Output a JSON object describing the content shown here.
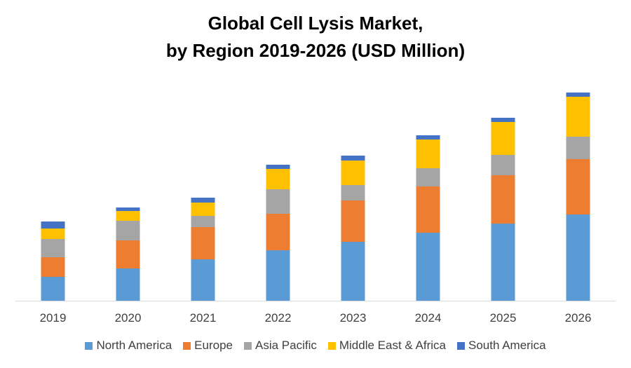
{
  "chart_data": {
    "type": "bar",
    "stacked": true,
    "title_line1": "Global Cell Lysis Market,",
    "title_line2": "by Region 2019-2026 (USD Million)",
    "categories": [
      "2019",
      "2020",
      "2021",
      "2022",
      "2023",
      "2024",
      "2025",
      "2026"
    ],
    "series": [
      {
        "name": "North America",
        "color": "#5B9BD5",
        "values": [
          34,
          46,
          59,
          72,
          84,
          97,
          110,
          123
        ]
      },
      {
        "name": "Europe",
        "color": "#ED7D31",
        "values": [
          28,
          40,
          46,
          52,
          59,
          66,
          69,
          79
        ]
      },
      {
        "name": "Asia Pacific",
        "color": "#A5A5A5",
        "values": [
          26,
          28,
          16,
          35,
          22,
          26,
          29,
          32
        ]
      },
      {
        "name": "Middle East & Africa",
        "color": "#FFC000",
        "values": [
          15,
          14,
          19,
          29,
          35,
          41,
          47,
          57
        ]
      },
      {
        "name": "South America",
        "color": "#4472C4",
        "values": [
          10,
          5,
          7,
          6,
          7,
          6,
          6,
          6
        ]
      }
    ],
    "ylim": [
      0,
      300
    ],
    "grid": false,
    "legend_position": "bottom"
  }
}
